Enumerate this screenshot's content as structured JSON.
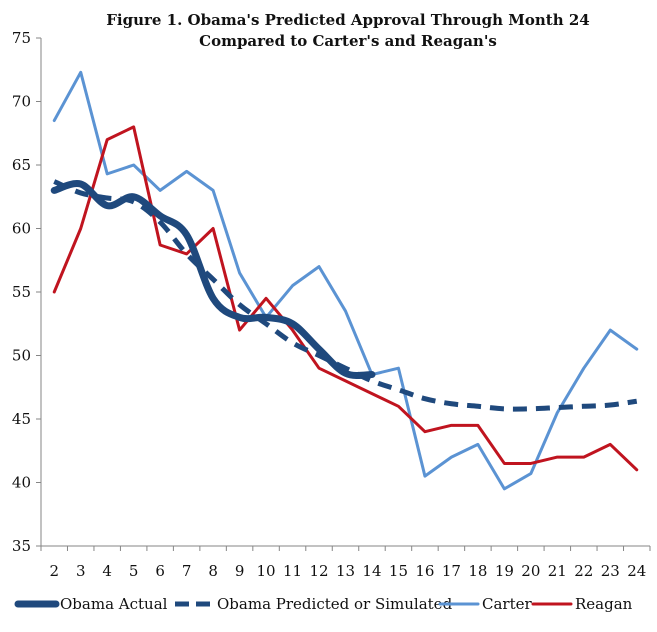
{
  "chart_data": {
    "type": "line",
    "title_line1": "Figure 1.  Obama's Predicted Approval Through Month 24",
    "title_line2": "Compared  to Carter's and Reagan's",
    "xlabel": "",
    "ylabel": "",
    "x": [
      2,
      3,
      4,
      5,
      6,
      7,
      8,
      9,
      10,
      11,
      12,
      13,
      14,
      15,
      16,
      17,
      18,
      19,
      20,
      21,
      22,
      23,
      24
    ],
    "xlim": [
      1.5,
      24.5
    ],
    "ylim": [
      35,
      75
    ],
    "yticks": [
      35,
      40,
      45,
      50,
      55,
      60,
      65,
      70,
      75
    ],
    "grid": false,
    "legend_position": "bottom",
    "series": [
      {
        "name": "Obama Actual",
        "color": "#1f497d",
        "style": "thick-solid",
        "smooth": true,
        "x": [
          2,
          3,
          4,
          5,
          6,
          7,
          8,
          9,
          10,
          11,
          12,
          13,
          14
        ],
        "values": [
          63.0,
          63.5,
          61.8,
          62.5,
          61.0,
          59.5,
          54.5,
          53.0,
          53.0,
          52.5,
          50.5,
          48.6,
          48.5
        ]
      },
      {
        "name": "Obama Predicted or Simulated",
        "color": "#1f497d",
        "style": "dashed",
        "smooth": true,
        "x": [
          2,
          3,
          4,
          5,
          6,
          7,
          8,
          9,
          10,
          11,
          12,
          13,
          14,
          15,
          16,
          17,
          18,
          19,
          20,
          21,
          22,
          23,
          24
        ],
        "values": [
          63.7,
          62.8,
          62.4,
          62.1,
          60.5,
          58.0,
          56.0,
          54.0,
          52.5,
          51.0,
          50.0,
          49.0,
          48.0,
          47.3,
          46.6,
          46.2,
          46.0,
          45.8,
          45.8,
          45.9,
          46.0,
          46.1,
          46.4
        ]
      },
      {
        "name": "Carter",
        "color": "#5b93d3",
        "style": "solid",
        "smooth": false,
        "x": [
          2,
          3,
          4,
          5,
          6,
          7,
          8,
          9,
          10,
          11,
          12,
          13,
          14,
          15,
          16,
          17,
          18,
          19,
          20,
          21,
          22,
          23,
          24
        ],
        "values": [
          68.5,
          72.3,
          64.3,
          65.0,
          63.0,
          64.5,
          63.0,
          56.5,
          53.0,
          55.5,
          57.0,
          53.5,
          48.5,
          49.0,
          40.5,
          42.0,
          43.0,
          39.5,
          40.7,
          45.5,
          49.0,
          52.0,
          50.5
        ]
      },
      {
        "name": "Reagan",
        "color": "#c0141f",
        "style": "solid",
        "smooth": false,
        "x": [
          2,
          3,
          4,
          5,
          6,
          7,
          8,
          9,
          10,
          11,
          12,
          13,
          14,
          15,
          16,
          17,
          18,
          19,
          20,
          21,
          22,
          23,
          24
        ],
        "values": [
          55.0,
          60.0,
          67.0,
          68.0,
          58.7,
          58.0,
          60.0,
          52.0,
          54.5,
          52.0,
          49.0,
          48.0,
          47.0,
          46.0,
          44.0,
          44.5,
          44.5,
          41.5,
          41.5,
          42.0,
          42.0,
          43.0,
          41.0
        ]
      }
    ]
  }
}
